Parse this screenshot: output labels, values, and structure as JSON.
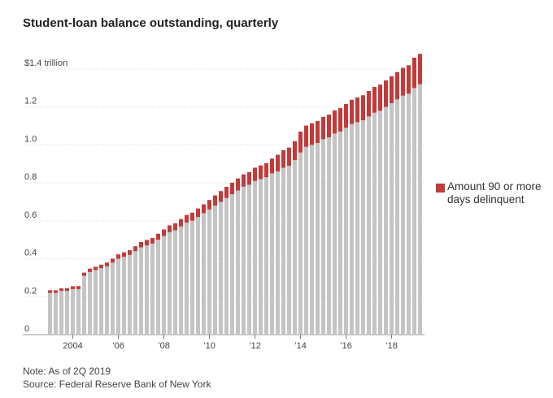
{
  "chart_data": {
    "type": "bar",
    "stacked": true,
    "title": "Student-loan balance outstanding, quarterly",
    "ylim": [
      0,
      1.4
    ],
    "yticks": [
      {
        "value": 0,
        "label": "0"
      },
      {
        "value": 0.2,
        "label": "0.2"
      },
      {
        "value": 0.4,
        "label": "0.4"
      },
      {
        "value": 0.6,
        "label": "0.6"
      },
      {
        "value": 0.8,
        "label": "0.8"
      },
      {
        "value": 1.0,
        "label": "1.0"
      },
      {
        "value": 1.2,
        "label": "1.2"
      },
      {
        "value": 1.4,
        "label": "$1.4 trillion"
      }
    ],
    "xticks": [
      {
        "index": 4,
        "label": "2004"
      },
      {
        "index": 12,
        "label": "’06"
      },
      {
        "index": 20,
        "label": "’08"
      },
      {
        "index": 28,
        "label": "’10"
      },
      {
        "index": 36,
        "label": "’12"
      },
      {
        "index": 44,
        "label": "’14"
      },
      {
        "index": 52,
        "label": "’16"
      },
      {
        "index": 60,
        "label": "’18"
      }
    ],
    "categories": [
      "2003 Q1",
      "2003 Q2",
      "2003 Q3",
      "2003 Q4",
      "2004 Q1",
      "2004 Q2",
      "2004 Q3",
      "2004 Q4",
      "2005 Q1",
      "2005 Q2",
      "2005 Q3",
      "2005 Q4",
      "2006 Q1",
      "2006 Q2",
      "2006 Q3",
      "2006 Q4",
      "2007 Q1",
      "2007 Q2",
      "2007 Q3",
      "2007 Q4",
      "2008 Q1",
      "2008 Q2",
      "2008 Q3",
      "2008 Q4",
      "2009 Q1",
      "2009 Q2",
      "2009 Q3",
      "2009 Q4",
      "2010 Q1",
      "2010 Q2",
      "2010 Q3",
      "2010 Q4",
      "2011 Q1",
      "2011 Q2",
      "2011 Q3",
      "2011 Q4",
      "2012 Q1",
      "2012 Q2",
      "2012 Q3",
      "2012 Q4",
      "2013 Q1",
      "2013 Q2",
      "2013 Q3",
      "2013 Q4",
      "2014 Q1",
      "2014 Q2",
      "2014 Q3",
      "2014 Q4",
      "2015 Q1",
      "2015 Q2",
      "2015 Q3",
      "2015 Q4",
      "2016 Q1",
      "2016 Q2",
      "2016 Q3",
      "2016 Q4",
      "2017 Q1",
      "2017 Q2",
      "2017 Q3",
      "2017 Q4",
      "2018 Q1",
      "2018 Q2",
      "2018 Q3",
      "2018 Q4",
      "2019 Q1",
      "2019 Q2"
    ],
    "series": [
      {
        "color": "#c4c4c4",
        "values": [
          0.22,
          0.22,
          0.23,
          0.23,
          0.24,
          0.24,
          0.31,
          0.33,
          0.34,
          0.35,
          0.36,
          0.38,
          0.4,
          0.41,
          0.42,
          0.44,
          0.46,
          0.47,
          0.48,
          0.5,
          0.52,
          0.54,
          0.55,
          0.57,
          0.59,
          0.6,
          0.62,
          0.64,
          0.66,
          0.68,
          0.7,
          0.72,
          0.74,
          0.76,
          0.78,
          0.79,
          0.81,
          0.82,
          0.83,
          0.85,
          0.86,
          0.88,
          0.89,
          0.92,
          0.96,
          0.99,
          1.0,
          1.01,
          1.03,
          1.04,
          1.06,
          1.07,
          1.09,
          1.11,
          1.12,
          1.13,
          1.15,
          1.17,
          1.18,
          1.2,
          1.22,
          1.24,
          1.26,
          1.27,
          1.3,
          1.32
        ]
      },
      {
        "name": "Amount 90 or more days delinquent",
        "color": "#c23b3b",
        "values": [
          0.014,
          0.014,
          0.014,
          0.015,
          0.015,
          0.016,
          0.017,
          0.018,
          0.018,
          0.019,
          0.02,
          0.021,
          0.023,
          0.024,
          0.025,
          0.026,
          0.028,
          0.029,
          0.03,
          0.032,
          0.034,
          0.036,
          0.037,
          0.039,
          0.041,
          0.043,
          0.045,
          0.047,
          0.05,
          0.054,
          0.057,
          0.059,
          0.061,
          0.063,
          0.065,
          0.067,
          0.07,
          0.072,
          0.074,
          0.078,
          0.088,
          0.092,
          0.096,
          0.1,
          0.11,
          0.112,
          0.114,
          0.116,
          0.118,
          0.12,
          0.122,
          0.124,
          0.126,
          0.128,
          0.13,
          0.132,
          0.134,
          0.136,
          0.138,
          0.14,
          0.142,
          0.144,
          0.146,
          0.15,
          0.16,
          0.16
        ]
      }
    ],
    "legend_position": "right",
    "grid": true,
    "note": "Note: As of 2Q 2019",
    "source": "Source: Federal Reserve Bank of New York"
  }
}
